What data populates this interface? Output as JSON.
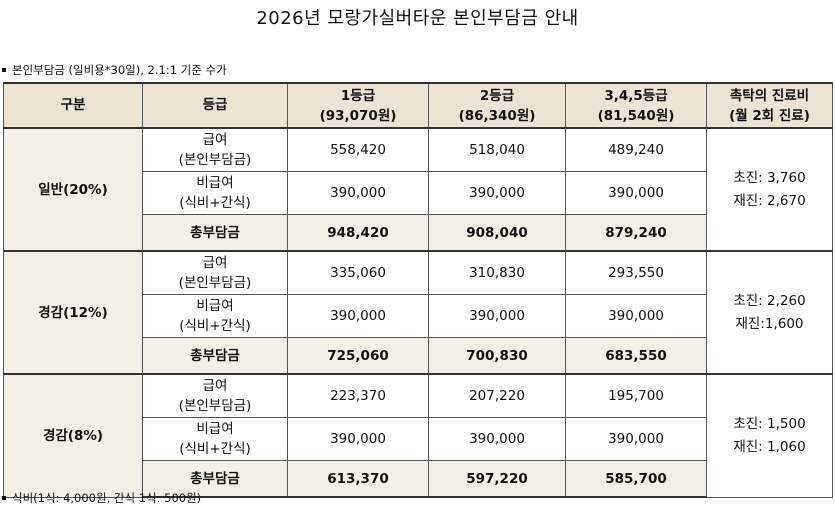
{
  "title": "2026년 모랑가실버타운 본인부담금 안내",
  "note_top": "본인부담금 (일비용*30일), 2.1:1 기준 수가",
  "note_bottom": "식비(1식: 4,000원, 간식 1식: 500원)",
  "header": {
    "col_gubun": "구분",
    "col_grade": "등급",
    "g1_line1": "1등급",
    "g1_line2": "(93,070원)",
    "g2_line1": "2등급",
    "g2_line2": "(86,340원)",
    "g3_line1": "3,4,5등급",
    "g3_line2": "(81,540원)",
    "doc_line1": "촉탁의 진료비",
    "doc_line2": "(월 2회 진료)"
  },
  "row_labels": {
    "covered_line1": "급여",
    "covered_line2": "(본인부담금)",
    "noncovered_line1": "비급여",
    "noncovered_line2": "(식비+간식)",
    "total": "총부담금"
  },
  "groups": [
    {
      "name": "일반(20%)",
      "covered": [
        "558,420",
        "518,040",
        "489,240"
      ],
      "noncovered": [
        "390,000",
        "390,000",
        "390,000"
      ],
      "total": [
        "948,420",
        "908,040",
        "879,240"
      ],
      "doc_first": "초진:  3,760",
      "doc_second": "재진:  2,670"
    },
    {
      "name": "경감(12%)",
      "covered": [
        "335,060",
        "310,830",
        "293,550"
      ],
      "noncovered": [
        "390,000",
        "390,000",
        "390,000"
      ],
      "total": [
        "725,060",
        "700,830",
        "683,550"
      ],
      "doc_first": "초진:  2,260",
      "doc_second": "재진:1,600"
    },
    {
      "name": "경감(8%)",
      "covered": [
        "223,370",
        "207,220",
        "195,700"
      ],
      "noncovered": [
        "390,000",
        "390,000",
        "390,000"
      ],
      "total": [
        "613,370",
        "597,220",
        "585,700"
      ],
      "doc_first": "초진:  1,500",
      "doc_second": "재진:  1,060"
    }
  ]
}
